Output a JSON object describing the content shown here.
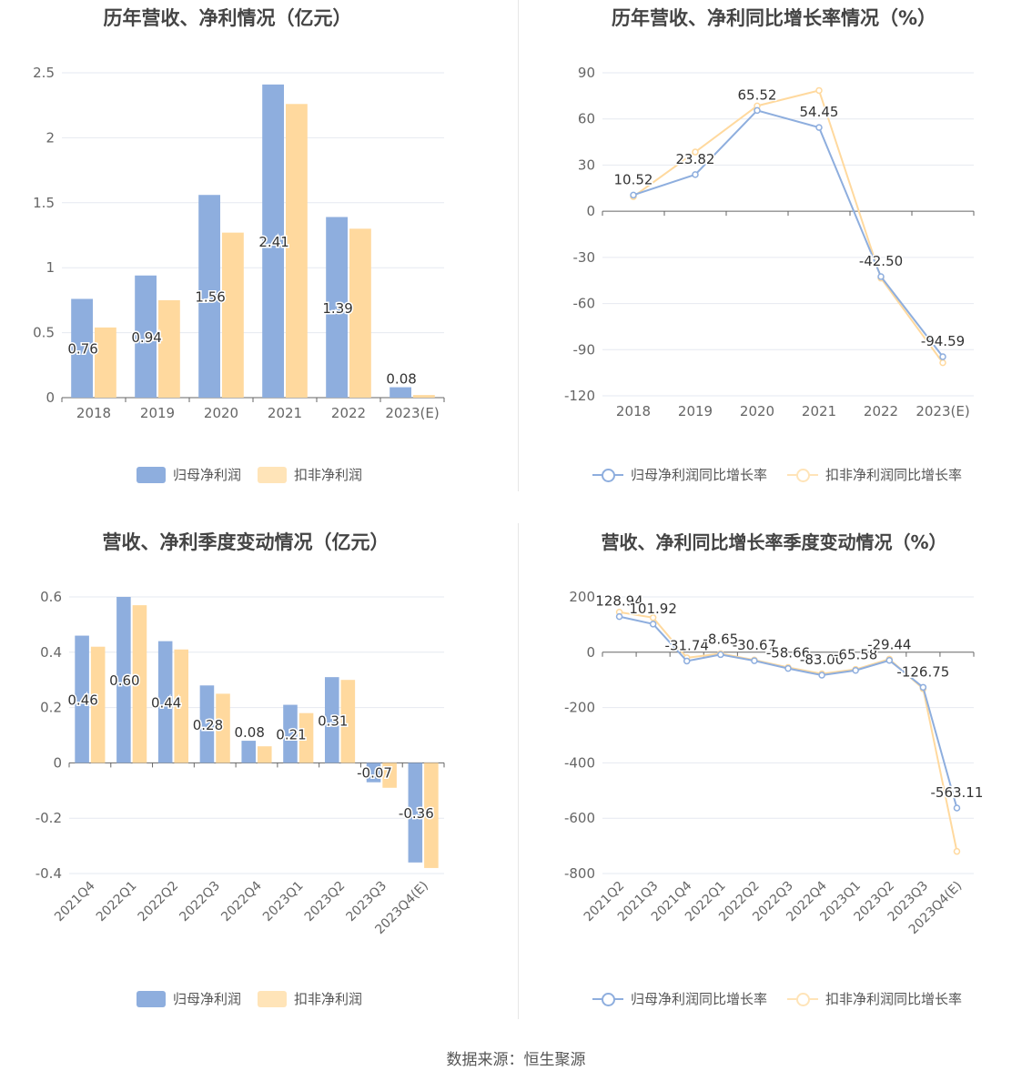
{
  "colors": {
    "primary": "#8eaede",
    "secondary": "#ffd99e",
    "grid": "#e6e9f0",
    "axis": "#666666",
    "label": "#333333"
  },
  "source": "数据来源：恒生聚源",
  "chart_data": [
    {
      "id": "annual-profit",
      "type": "bar",
      "title": "历年营收、净利情况（亿元）",
      "categories": [
        "2018",
        "2019",
        "2020",
        "2021",
        "2022",
        "2023(E)"
      ],
      "yticks": [
        "0",
        "0.5",
        "1",
        "1.5",
        "2",
        "2.5"
      ],
      "ylim": [
        0,
        2.5
      ],
      "series": [
        {
          "name": "归母净利润",
          "values": [
            0.76,
            0.94,
            1.56,
            2.41,
            1.39,
            0.08
          ],
          "labels": [
            "0.76",
            "0.94",
            "1.56",
            "2.41",
            "1.39",
            "0.08"
          ]
        },
        {
          "name": "扣非净利润",
          "values": [
            0.54,
            0.75,
            1.27,
            2.26,
            1.3,
            0.02
          ],
          "labels": []
        }
      ],
      "legend": "bottom"
    },
    {
      "id": "annual-growth",
      "type": "line",
      "title": "历年营收、净利同比增长率情况（%）",
      "categories": [
        "2018",
        "2019",
        "2020",
        "2021",
        "2022",
        "2023(E)"
      ],
      "yticks": [
        "-120",
        "-90",
        "-60",
        "-30",
        "0",
        "30",
        "60",
        "90"
      ],
      "ylim": [
        -120,
        90
      ],
      "series": [
        {
          "name": "归母净利润同比增长率",
          "values": [
            10.52,
            23.82,
            65.52,
            54.45,
            -42.5,
            -94.59
          ],
          "labels": [
            "10.52",
            "23.82",
            "65.52",
            "54.45",
            "-42.50",
            "-94.59"
          ]
        },
        {
          "name": "扣非净利润同比增长率",
          "values": [
            9.5,
            38.5,
            68.5,
            78.5,
            -43.5,
            -98.5
          ],
          "labels": []
        }
      ],
      "legend": "bottom"
    },
    {
      "id": "quarterly-profit",
      "type": "bar",
      "title": "营收、净利季度变动情况（亿元）",
      "categories": [
        "2021Q4",
        "2022Q1",
        "2022Q2",
        "2022Q3",
        "2022Q4",
        "2023Q1",
        "2023Q2",
        "2023Q3",
        "2023Q4(E)"
      ],
      "yticks": [
        "-0.4",
        "-0.2",
        "0",
        "0.2",
        "0.4",
        "0.6"
      ],
      "ylim": [
        -0.4,
        0.6
      ],
      "series": [
        {
          "name": "归母净利润",
          "values": [
            0.46,
            0.6,
            0.44,
            0.28,
            0.08,
            0.21,
            0.31,
            -0.07,
            -0.36
          ],
          "labels": [
            "0.46",
            "0.60",
            "0.44",
            "0.28",
            "0.08",
            "0.21",
            "0.31",
            "-0.07",
            "-0.36"
          ]
        },
        {
          "name": "扣非净利润",
          "values": [
            0.42,
            0.57,
            0.41,
            0.25,
            0.06,
            0.18,
            0.3,
            -0.09,
            -0.38
          ],
          "labels": []
        }
      ],
      "legend": "bottom"
    },
    {
      "id": "quarterly-growth",
      "type": "line",
      "title": "营收、净利同比增长率季度变动情况（%）",
      "categories": [
        "2021Q2",
        "2021Q3",
        "2021Q4",
        "2022Q1",
        "2022Q2",
        "2022Q3",
        "2022Q4",
        "2023Q1",
        "2023Q2",
        "2023Q3",
        "2023Q4(E)"
      ],
      "yticks": [
        "-800",
        "-600",
        "-400",
        "-200",
        "0",
        "200"
      ],
      "ylim": [
        -800,
        200
      ],
      "series": [
        {
          "name": "归母净利润同比增长率",
          "values": [
            128.94,
            101.92,
            -31.74,
            -8.65,
            -30.67,
            -58.66,
            -83.0,
            -65.58,
            -29.44,
            -126.75,
            -563.11
          ],
          "labels": [
            "128.94",
            "101.92",
            "-31.74",
            "-8.65",
            "-30.67",
            "-58.66",
            "-83.00",
            "-65.58",
            "-29.44",
            "-126.75",
            "-563.11"
          ]
        },
        {
          "name": "扣非净利润同比增长率",
          "values": [
            145,
            125,
            -20,
            -5,
            -28,
            -55,
            -78,
            -62,
            -25,
            -132,
            -720
          ],
          "labels": []
        }
      ],
      "legend": "bottom"
    }
  ]
}
